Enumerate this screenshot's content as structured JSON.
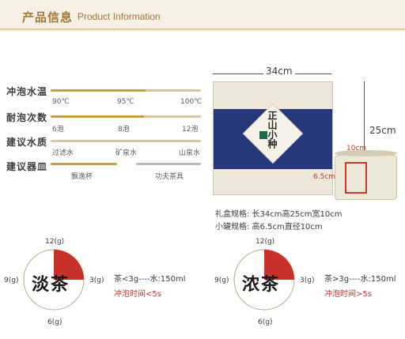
{
  "header": {
    "title_cn": "产品信息",
    "title_en": "Product Information"
  },
  "params": [
    {
      "label": "冲泡水温",
      "ticks": [
        "90℃",
        "95℃",
        "100℃"
      ]
    },
    {
      "label": "耐泡次数",
      "ticks": [
        "6泡",
        "8泡",
        "12泡"
      ]
    },
    {
      "label": "建议水质",
      "ticks": [
        "过滤水",
        "矿泉水",
        "山泉水"
      ]
    },
    {
      "label": "建议器皿",
      "ticks": [
        "飘逸杯",
        "功夫茶具"
      ]
    }
  ],
  "product": {
    "box_name": "正山小种",
    "box_width": "34cm",
    "box_height": "25cm",
    "can_width": "10cm",
    "can_height": "6.5cm",
    "spec_box": "礼盒规格: 长34cm高25cm宽10cm",
    "spec_can": "小罐规格: 高6.5cm直径10cm"
  },
  "dials": [
    {
      "label": "淡茶",
      "top": "12(g)",
      "right": "3(g)",
      "bottom": "6(g)",
      "left": "9(g)",
      "amount": "茶<3g----水:150ml",
      "time": "冲泡时间<5s",
      "fill": 0.25
    },
    {
      "label": "浓茶",
      "top": "12(g)",
      "right": "3(g)",
      "bottom": "6(g)",
      "left": "9(g)",
      "amount": "茶>3g----水:150ml",
      "time": "冲泡时间>5s",
      "fill": 0.25
    }
  ],
  "colors": {
    "accent": "#c89a4a",
    "red": "#c8312a",
    "navy": "#26377a"
  }
}
